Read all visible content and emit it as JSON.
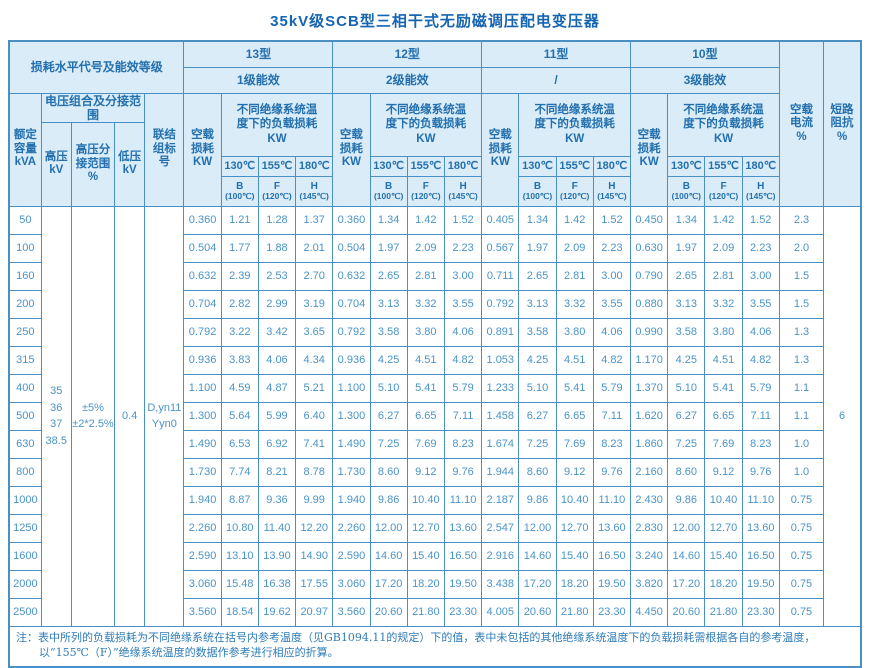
{
  "title": "35kV级SCB型三相干式无励磁调压配电变压器",
  "header": {
    "loss_level": "损耗水平代号及能效等级",
    "groups": [
      {
        "type": "13型",
        "eff": "1级能效"
      },
      {
        "type": "12型",
        "eff": "2级能效"
      },
      {
        "type": "11型",
        "eff": "/"
      },
      {
        "type": "10型",
        "eff": "3级能效"
      }
    ],
    "rated_capacity": "额定\n容量\nkVA",
    "voltage_combo": "电压组合及分接范围",
    "hv": "高压\nkV",
    "hv_tap": "高压分\n接范围\n%",
    "lv": "低压\nkV",
    "vector_group": "联结\n组标\n号",
    "no_load_loss": "空载\n损耗\nKW",
    "load_loss": "不同绝缘系统温\n度下的负载损耗\nKW",
    "temps": [
      "130℃",
      "155℃",
      "180℃"
    ],
    "temp_classes": [
      {
        "cls": "B",
        "ref": "(100℃)"
      },
      {
        "cls": "F",
        "ref": "(120℃)"
      },
      {
        "cls": "H",
        "ref": "(145℃)"
      }
    ],
    "no_load_current": "空载\n电流\n%",
    "impedance": "短路\n阻抗\n%"
  },
  "merged": {
    "hv": "35\n36\n37\n38.5",
    "tap_range": "±5%\n±2*2.5%",
    "lv": "0.4",
    "vector_group": "D,yn11\nYyn0",
    "impedance": "6"
  },
  "rows": [
    {
      "kva": "50",
      "values": [
        [
          "0.360",
          "1.21",
          "1.28",
          "1.37"
        ],
        [
          "0.360",
          "1.34",
          "1.42",
          "1.52"
        ],
        [
          "0.405",
          "1.34",
          "1.42",
          "1.52"
        ],
        [
          "0.450",
          "1.34",
          "1.42",
          "1.52"
        ]
      ],
      "current": "2.3"
    },
    {
      "kva": "100",
      "values": [
        [
          "0.504",
          "1.77",
          "1.88",
          "2.01"
        ],
        [
          "0.504",
          "1.97",
          "2.09",
          "2.23"
        ],
        [
          "0.567",
          "1.97",
          "2.09",
          "2.23"
        ],
        [
          "0.630",
          "1.97",
          "2.09",
          "2.23"
        ]
      ],
      "current": "2.0"
    },
    {
      "kva": "160",
      "values": [
        [
          "0.632",
          "2.39",
          "2.53",
          "2.70"
        ],
        [
          "0.632",
          "2.65",
          "2.81",
          "3.00"
        ],
        [
          "0.711",
          "2.65",
          "2.81",
          "3.00"
        ],
        [
          "0.790",
          "2.65",
          "2.81",
          "3.00"
        ]
      ],
      "current": "1.5"
    },
    {
      "kva": "200",
      "values": [
        [
          "0.704",
          "2.82",
          "2.99",
          "3.19"
        ],
        [
          "0.704",
          "3.13",
          "3.32",
          "3.55"
        ],
        [
          "0.792",
          "3.13",
          "3.32",
          "3.55"
        ],
        [
          "0.880",
          "3.13",
          "3.32",
          "3.55"
        ]
      ],
      "current": "1.5"
    },
    {
      "kva": "250",
      "values": [
        [
          "0.792",
          "3.22",
          "3.42",
          "3.65"
        ],
        [
          "0.792",
          "3.58",
          "3.80",
          "4.06"
        ],
        [
          "0.891",
          "3.58",
          "3.80",
          "4.06"
        ],
        [
          "0.990",
          "3.58",
          "3.80",
          "4.06"
        ]
      ],
      "current": "1.3"
    },
    {
      "kva": "315",
      "values": [
        [
          "0.936",
          "3.83",
          "4.06",
          "4.34"
        ],
        [
          "0.936",
          "4.25",
          "4.51",
          "4.82"
        ],
        [
          "1.053",
          "4.25",
          "4.51",
          "4.82"
        ],
        [
          "1.170",
          "4.25",
          "4.51",
          "4.82"
        ]
      ],
      "current": "1.3"
    },
    {
      "kva": "400",
      "values": [
        [
          "1.100",
          "4.59",
          "4.87",
          "5.21"
        ],
        [
          "1.100",
          "5.10",
          "5.41",
          "5.79"
        ],
        [
          "1.233",
          "5.10",
          "5.41",
          "5.79"
        ],
        [
          "1.370",
          "5.10",
          "5.41",
          "5.79"
        ]
      ],
      "current": "1.1"
    },
    {
      "kva": "500",
      "values": [
        [
          "1.300",
          "5.64",
          "5.99",
          "6.40"
        ],
        [
          "1.300",
          "6.27",
          "6.65",
          "7.11"
        ],
        [
          "1.458",
          "6.27",
          "6.65",
          "7.11"
        ],
        [
          "1.620",
          "6.27",
          "6.65",
          "7.11"
        ]
      ],
      "current": "1.1"
    },
    {
      "kva": "630",
      "values": [
        [
          "1.490",
          "6.53",
          "6.92",
          "7.41"
        ],
        [
          "1.490",
          "7.25",
          "7.69",
          "8.23"
        ],
        [
          "1.674",
          "7.25",
          "7.69",
          "8.23"
        ],
        [
          "1.860",
          "7.25",
          "7.69",
          "8.23"
        ]
      ],
      "current": "1.0"
    },
    {
      "kva": "800",
      "values": [
        [
          "1.730",
          "7.74",
          "8.21",
          "8.78"
        ],
        [
          "1.730",
          "8.60",
          "9.12",
          "9.76"
        ],
        [
          "1.944",
          "8.60",
          "9.12",
          "9.76"
        ],
        [
          "2.160",
          "8.60",
          "9.12",
          "9.76"
        ]
      ],
      "current": "1.0"
    },
    {
      "kva": "1000",
      "values": [
        [
          "1.940",
          "8.87",
          "9.36",
          "9.99"
        ],
        [
          "1.940",
          "9.86",
          "10.40",
          "11.10"
        ],
        [
          "2.187",
          "9.86",
          "10.40",
          "11.10"
        ],
        [
          "2.430",
          "9.86",
          "10.40",
          "11.10"
        ]
      ],
      "current": "0.75"
    },
    {
      "kva": "1250",
      "values": [
        [
          "2.260",
          "10.80",
          "11.40",
          "12.20"
        ],
        [
          "2.260",
          "12.00",
          "12.70",
          "13.60"
        ],
        [
          "2.547",
          "12.00",
          "12.70",
          "13.60"
        ],
        [
          "2.830",
          "12.00",
          "12.70",
          "13.60"
        ]
      ],
      "current": "0.75"
    },
    {
      "kva": "1600",
      "values": [
        [
          "2.590",
          "13.10",
          "13.90",
          "14.90"
        ],
        [
          "2.590",
          "14.60",
          "15.40",
          "16.50"
        ],
        [
          "2.916",
          "14.60",
          "15.40",
          "16.50"
        ],
        [
          "3.240",
          "14.60",
          "15.40",
          "16.50"
        ]
      ],
      "current": "0.75"
    },
    {
      "kva": "2000",
      "values": [
        [
          "3.060",
          "15.48",
          "16.38",
          "17.55"
        ],
        [
          "3.060",
          "17.20",
          "18.20",
          "19.50"
        ],
        [
          "3.438",
          "17.20",
          "18.20",
          "19.50"
        ],
        [
          "3.820",
          "17.20",
          "18.20",
          "19.50"
        ]
      ],
      "current": "0.75"
    },
    {
      "kva": "2500",
      "values": [
        [
          "3.560",
          "18.54",
          "19.62",
          "20.97"
        ],
        [
          "3.560",
          "20.60",
          "21.80",
          "23.30"
        ],
        [
          "4.005",
          "20.60",
          "21.80",
          "23.30"
        ],
        [
          "4.450",
          "20.60",
          "21.80",
          "23.30"
        ]
      ],
      "current": "0.75"
    }
  ],
  "note": {
    "line1": "注：表中所列的负载损耗为不同绝缘系统在括号内参考温度（见GB1094.11的规定）下的值，表中未包括的其他绝缘系统温度下的负载损耗需根据各自的参考温度，",
    "line2": "以“155℃（F）”绝缘系统温度的数据作参考进行相应的折算。"
  }
}
